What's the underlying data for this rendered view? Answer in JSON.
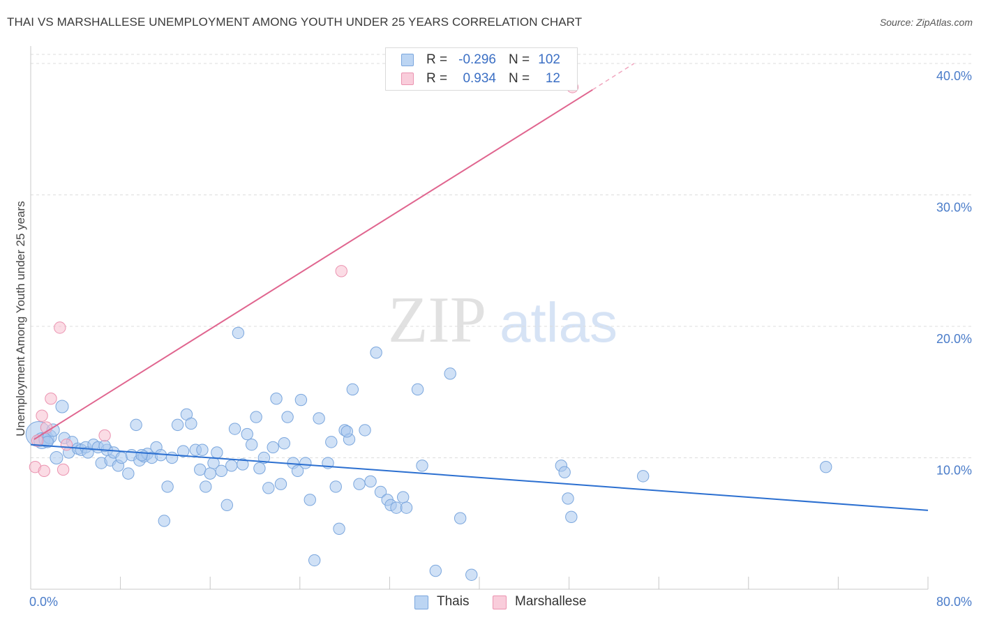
{
  "title": "THAI VS MARSHALLESE UNEMPLOYMENT AMONG YOUTH UNDER 25 YEARS CORRELATION CHART",
  "source": "Source: ZipAtlas.com",
  "watermark": {
    "zip": "ZIP",
    "atlas": "atlas"
  },
  "legend_top": {
    "rows": [
      {
        "r_label": "R =",
        "r_value": "-0.296",
        "n_label": "N =",
        "n_value": "102"
      },
      {
        "r_label": "R =",
        "r_value": "0.934",
        "n_label": "N =",
        "n_value": "12"
      }
    ]
  },
  "legend_bottom": {
    "items": [
      {
        "label": "Thais"
      },
      {
        "label": "Marshallese"
      }
    ]
  },
  "colors": {
    "thais_fill": "#a9c8ef",
    "thais_stroke": "#7aa6dd",
    "thais_line": "#2b6fd0",
    "marsh_fill": "#f7bfd0",
    "marsh_stroke": "#eb93b0",
    "marsh_line": "#e0658f",
    "grid": "#dcdcdc",
    "tick_label": "#4a7cc9"
  },
  "chart_data": {
    "type": "scatter",
    "title": "THAI VS MARSHALLESE UNEMPLOYMENT AMONG YOUTH UNDER 25 YEARS CORRELATION CHART",
    "xlabel": "",
    "ylabel": "Unemployment Among Youth under 25 years",
    "xlim": [
      0,
      80
    ],
    "ylim": [
      0,
      40.9
    ],
    "x_tick_labels": [
      {
        "value": 0,
        "label": "0.0%"
      },
      {
        "value": 80,
        "label": "80.0%"
      }
    ],
    "y_tick_labels": [
      {
        "value": 10,
        "label": "10.0%"
      },
      {
        "value": 20,
        "label": "20.0%"
      },
      {
        "value": 30,
        "label": "30.0%"
      },
      {
        "value": 40,
        "label": "40.0%"
      }
    ],
    "grid": true,
    "legend_position": "top-center",
    "series": [
      {
        "name": "Thais",
        "trend": {
          "x": [
            0,
            80
          ],
          "y": [
            11.0,
            6.0
          ]
        },
        "points": [
          [
            0.7,
            11.8,
            22
          ],
          [
            1.0,
            11.3,
            14
          ],
          [
            1.4,
            11.4,
            13
          ],
          [
            1.7,
            11.6,
            12
          ],
          [
            2.0,
            12.1,
            11
          ],
          [
            1.5,
            11.2,
            10
          ],
          [
            2.3,
            10.0,
            11
          ],
          [
            2.8,
            13.9,
            11
          ],
          [
            3.0,
            11.5,
            10
          ],
          [
            3.4,
            10.4,
            10
          ],
          [
            3.7,
            11.2,
            10
          ],
          [
            4.2,
            10.7,
            10
          ],
          [
            4.5,
            10.6,
            10
          ],
          [
            4.9,
            10.8,
            10
          ],
          [
            5.1,
            10.4,
            10
          ],
          [
            5.6,
            11.0,
            10
          ],
          [
            6.0,
            10.8,
            10
          ],
          [
            6.3,
            9.6,
            10
          ],
          [
            6.8,
            10.6,
            10
          ],
          [
            7.1,
            9.8,
            10
          ],
          [
            7.4,
            10.4,
            10
          ],
          [
            7.8,
            9.4,
            10
          ],
          [
            8.1,
            10.0,
            10
          ],
          [
            8.7,
            8.8,
            10
          ],
          [
            9.0,
            10.2,
            10
          ],
          [
            9.4,
            12.5,
            10
          ],
          [
            9.7,
            9.8,
            10
          ],
          [
            10.1,
            10.1,
            10
          ],
          [
            10.4,
            10.3,
            10
          ],
          [
            10.8,
            10.0,
            10
          ],
          [
            11.2,
            10.8,
            10
          ],
          [
            11.6,
            10.2,
            10
          ],
          [
            11.9,
            5.2,
            10
          ],
          [
            12.2,
            7.8,
            10
          ],
          [
            12.6,
            10.0,
            10
          ],
          [
            13.1,
            12.5,
            10
          ],
          [
            13.6,
            10.5,
            10
          ],
          [
            13.9,
            13.3,
            10
          ],
          [
            14.3,
            12.6,
            10
          ],
          [
            14.7,
            10.6,
            10
          ],
          [
            15.1,
            9.1,
            10
          ],
          [
            15.6,
            7.8,
            10
          ],
          [
            16.0,
            8.8,
            10
          ],
          [
            16.3,
            9.6,
            10
          ],
          [
            16.6,
            10.4,
            10
          ],
          [
            17.0,
            9.0,
            10
          ],
          [
            17.5,
            6.4,
            10
          ],
          [
            17.9,
            9.4,
            10
          ],
          [
            18.2,
            12.2,
            10
          ],
          [
            18.5,
            19.5,
            10
          ],
          [
            18.9,
            9.5,
            10
          ],
          [
            19.3,
            11.8,
            10
          ],
          [
            19.7,
            11.0,
            10
          ],
          [
            20.1,
            13.1,
            10
          ],
          [
            20.4,
            9.2,
            10
          ],
          [
            20.8,
            10.0,
            10
          ],
          [
            21.2,
            7.7,
            10
          ],
          [
            21.6,
            10.8,
            10
          ],
          [
            21.9,
            14.5,
            10
          ],
          [
            22.3,
            8.0,
            10
          ],
          [
            22.6,
            11.1,
            10
          ],
          [
            22.9,
            13.1,
            10
          ],
          [
            23.4,
            9.6,
            10
          ],
          [
            23.8,
            9.0,
            10
          ],
          [
            24.1,
            14.4,
            10
          ],
          [
            24.5,
            9.6,
            10
          ],
          [
            24.9,
            6.8,
            10
          ],
          [
            25.3,
            2.2,
            10
          ],
          [
            25.7,
            13.0,
            10
          ],
          [
            26.5,
            9.6,
            10
          ],
          [
            26.8,
            11.2,
            10
          ],
          [
            27.2,
            7.8,
            10
          ],
          [
            27.5,
            4.6,
            10
          ],
          [
            28.0,
            12.1,
            10
          ],
          [
            28.4,
            11.4,
            10
          ],
          [
            28.7,
            15.2,
            10
          ],
          [
            29.3,
            8.0,
            10
          ],
          [
            29.8,
            12.1,
            10
          ],
          [
            30.3,
            8.2,
            10
          ],
          [
            30.8,
            18.0,
            10
          ],
          [
            31.2,
            7.4,
            10
          ],
          [
            31.8,
            6.8,
            10
          ],
          [
            32.1,
            6.4,
            10
          ],
          [
            32.6,
            6.2,
            10
          ],
          [
            33.2,
            7.0,
            10
          ],
          [
            33.5,
            6.2,
            10
          ],
          [
            34.5,
            15.2,
            10
          ],
          [
            34.9,
            9.4,
            10
          ],
          [
            36.1,
            1.4,
            10
          ],
          [
            37.4,
            16.4,
            10
          ],
          [
            38.3,
            5.4,
            10
          ],
          [
            39.3,
            1.1,
            10
          ],
          [
            47.3,
            9.4,
            10
          ],
          [
            47.6,
            8.9,
            10
          ],
          [
            47.9,
            6.9,
            10
          ],
          [
            48.2,
            5.5,
            10
          ],
          [
            54.6,
            8.6,
            10
          ],
          [
            70.9,
            9.3,
            10
          ],
          [
            6.6,
            10.9,
            10
          ],
          [
            9.9,
            10.2,
            10
          ],
          [
            15.3,
            10.6,
            10
          ],
          [
            28.2,
            12.0,
            10
          ]
        ]
      },
      {
        "name": "Marshallese",
        "trend": {
          "x": [
            0.3,
            50.1
          ],
          "y": [
            11.4,
            38.0
          ],
          "dashed_to": [
            53.8,
            40.0
          ]
        },
        "points": [
          [
            0.4,
            9.3,
            10
          ],
          [
            0.6,
            11.3,
            10
          ],
          [
            1.0,
            13.2,
            10
          ],
          [
            1.2,
            9.0,
            10
          ],
          [
            1.4,
            12.3,
            10
          ],
          [
            1.8,
            14.5,
            10
          ],
          [
            2.6,
            19.9,
            10
          ],
          [
            2.9,
            9.1,
            10
          ],
          [
            3.2,
            11.0,
            10
          ],
          [
            6.6,
            11.7,
            10
          ],
          [
            27.7,
            24.2,
            10
          ],
          [
            48.3,
            38.2,
            10
          ]
        ]
      }
    ]
  }
}
